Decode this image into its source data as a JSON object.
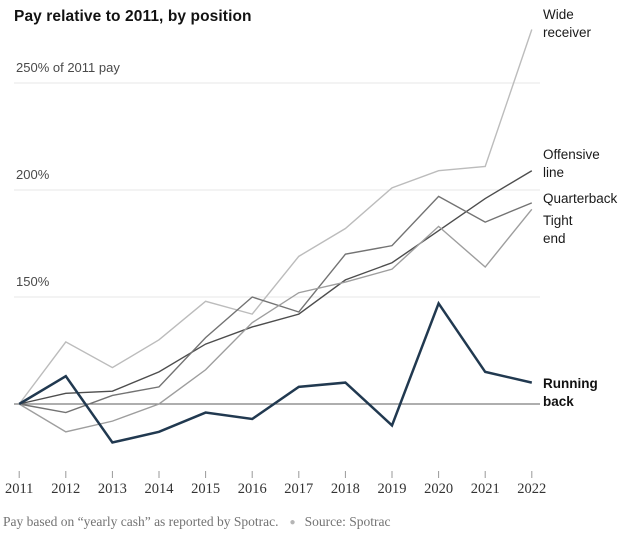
{
  "title": "Pay relative to 2011, by position",
  "axis": {
    "y_labels": [
      {
        "value": 250,
        "text": "250% of 2011 pay"
      },
      {
        "value": 200,
        "text": "200%"
      },
      {
        "value": 150,
        "text": "150%"
      }
    ],
    "x_ticks": [
      "2011",
      "2012",
      "2013",
      "2014",
      "2015",
      "2016",
      "2017",
      "2018",
      "2019",
      "2020",
      "2021",
      "2022"
    ]
  },
  "footer": {
    "note": "Pay based on “yearly cash” as reported by Spotrac.",
    "dot": "●",
    "source": "Source: Spotrac"
  },
  "colors": {
    "gridline": "#e7e7e7",
    "baseline": "#7d7d7d",
    "tick": "#999999",
    "wide_receiver": "#bcbcbc",
    "offensive_line": "#4d4d4d",
    "quarterback": "#737373",
    "tight_end": "#9e9e9e",
    "running_back": "#213950"
  },
  "chart_data": {
    "type": "line",
    "x": [
      2011,
      2012,
      2013,
      2014,
      2015,
      2016,
      2017,
      2018,
      2019,
      2020,
      2021,
      2022
    ],
    "xlabel": "",
    "ylabel": "% of 2011 pay",
    "ylim": [
      75,
      285
    ],
    "baseline": 100,
    "gridlines": [
      250,
      200,
      150
    ],
    "grid": true,
    "legend_position": "right",
    "series": [
      {
        "name": "wide-receiver",
        "label": "Wide\nreceiver",
        "color": "#bcbcbc",
        "bold": false,
        "values": [
          100,
          129,
          117,
          130,
          148,
          142,
          169,
          182,
          201,
          209,
          211,
          275
        ]
      },
      {
        "name": "offensive-line",
        "label": "Offensive\nline",
        "color": "#4d4d4d",
        "bold": false,
        "values": [
          100,
          105,
          106,
          115,
          128,
          136,
          142,
          158,
          166,
          181,
          196,
          209
        ]
      },
      {
        "name": "quarterback",
        "label": "Quarterback",
        "color": "#737373",
        "bold": false,
        "values": [
          100,
          96,
          104,
          108,
          131,
          150,
          143,
          170,
          174,
          197,
          185,
          194
        ]
      },
      {
        "name": "tight-end",
        "label": "Tight\nend",
        "color": "#9e9e9e",
        "bold": false,
        "values": [
          100,
          87,
          92,
          100,
          116,
          138,
          152,
          157,
          163,
          183,
          164,
          191
        ]
      },
      {
        "name": "running-back",
        "label": "Running\nback",
        "color": "#213950",
        "bold": true,
        "values": [
          100,
          113,
          82,
          87,
          96,
          93,
          108,
          110,
          90,
          147,
          115,
          110
        ]
      }
    ]
  }
}
